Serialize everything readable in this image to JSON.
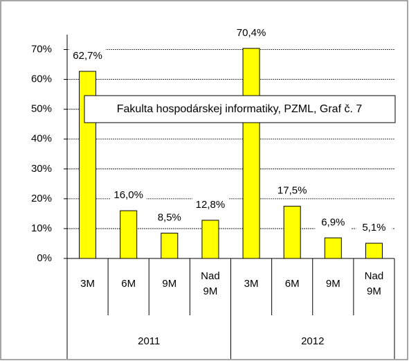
{
  "chart_data": {
    "type": "bar",
    "annotation": "Fakulta hospodárskej informatiky, PZML, Graf č. 7",
    "groups": [
      "2011",
      "2012"
    ],
    "categories": [
      "3M",
      "6M",
      "9M",
      "Nad 9M",
      "3M",
      "6M",
      "9M",
      "Nad 9M"
    ],
    "values": [
      62.7,
      16.0,
      8.5,
      12.8,
      70.4,
      17.5,
      6.9,
      5.1
    ],
    "value_labels": [
      "62,7%",
      "16,0%",
      "8,5%",
      "12,8%",
      "70,4%",
      "17,5%",
      "6,9%",
      "5,1%"
    ],
    "color": "#ffff00",
    "ylim": [
      0,
      75
    ],
    "yticks": [
      {
        "value": 0,
        "label": "0%"
      },
      {
        "value": 10,
        "label": "10%"
      },
      {
        "value": 20,
        "label": "20%"
      },
      {
        "value": 30,
        "label": "30%"
      },
      {
        "value": 40,
        "label": "40%"
      },
      {
        "value": 50,
        "label": "50%"
      },
      {
        "value": 60,
        "label": "60%"
      },
      {
        "value": 70,
        "label": "70%"
      }
    ],
    "grid": true
  }
}
